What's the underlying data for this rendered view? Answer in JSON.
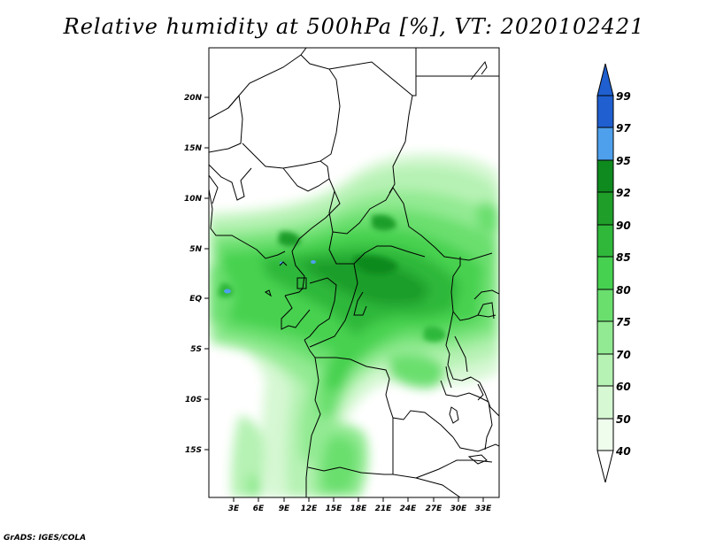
{
  "title": "Relative humidity at 500hPa [%], VT: 2020102421",
  "credit": "GrADS: IGES/COLA",
  "map": {
    "lat_labels": [
      "20N",
      "15N",
      "10N",
      "5N",
      "EQ",
      "5S",
      "10S",
      "15S"
    ],
    "lon_labels": [
      "3E",
      "6E",
      "9E",
      "12E",
      "15E",
      "18E",
      "21E",
      "24E",
      "27E",
      "30E",
      "33E"
    ]
  },
  "colorbar": {
    "levels": [
      "99",
      "97",
      "95",
      "92",
      "90",
      "85",
      "80",
      "75",
      "70",
      "60",
      "50",
      "40"
    ],
    "colors": [
      "#1f5fcf",
      "#2b7de0",
      "#4ea0ec",
      "#0f8a1e",
      "#1f9e2a",
      "#2fb83a",
      "#46d150",
      "#6adf6e",
      "#92ea92",
      "#b6f2b4",
      "#d6f8d3",
      "#eefdec"
    ]
  },
  "colors": {
    "frame": "#000000",
    "land_border": "#000000"
  }
}
